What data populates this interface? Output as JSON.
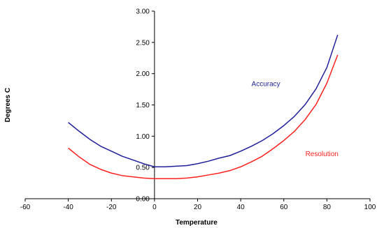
{
  "chart_data": {
    "type": "line",
    "title": "",
    "xlabel": "Temperature",
    "ylabel": "Degrees C",
    "xlim": [
      -60,
      100
    ],
    "ylim": [
      0,
      3
    ],
    "grid": false,
    "legend": "none",
    "x_ticks": [
      "-60",
      "-40",
      "-20",
      "0",
      "20",
      "40",
      "60",
      "80",
      "100"
    ],
    "y_ticks": [
      "0.00",
      "0.50",
      "1.00",
      "1.50",
      "2.00",
      "2.50",
      "3.00"
    ],
    "series": [
      {
        "name": "Accuracy",
        "color": "#1f1f9a",
        "x": [
          -40,
          -35,
          -30,
          -25,
          -20,
          -15,
          -10,
          -5,
          0,
          5,
          10,
          15,
          20,
          25,
          30,
          35,
          40,
          45,
          50,
          55,
          60,
          65,
          70,
          75,
          80,
          85
        ],
        "y": [
          1.22,
          1.08,
          0.95,
          0.84,
          0.76,
          0.68,
          0.62,
          0.56,
          0.51,
          0.51,
          0.52,
          0.53,
          0.56,
          0.6,
          0.65,
          0.69,
          0.76,
          0.84,
          0.93,
          1.04,
          1.17,
          1.32,
          1.51,
          1.76,
          2.1,
          2.62
        ]
      },
      {
        "name": "Resolution",
        "color": "#ff2020",
        "x": [
          -40,
          -35,
          -30,
          -25,
          -20,
          -15,
          -10,
          -5,
          0,
          5,
          10,
          15,
          20,
          25,
          30,
          35,
          40,
          45,
          50,
          55,
          60,
          65,
          70,
          75,
          80,
          85
        ],
        "y": [
          0.81,
          0.67,
          0.55,
          0.47,
          0.41,
          0.37,
          0.35,
          0.33,
          0.32,
          0.32,
          0.32,
          0.33,
          0.35,
          0.38,
          0.41,
          0.45,
          0.51,
          0.59,
          0.68,
          0.8,
          0.93,
          1.08,
          1.27,
          1.51,
          1.85,
          2.3
        ]
      }
    ]
  }
}
